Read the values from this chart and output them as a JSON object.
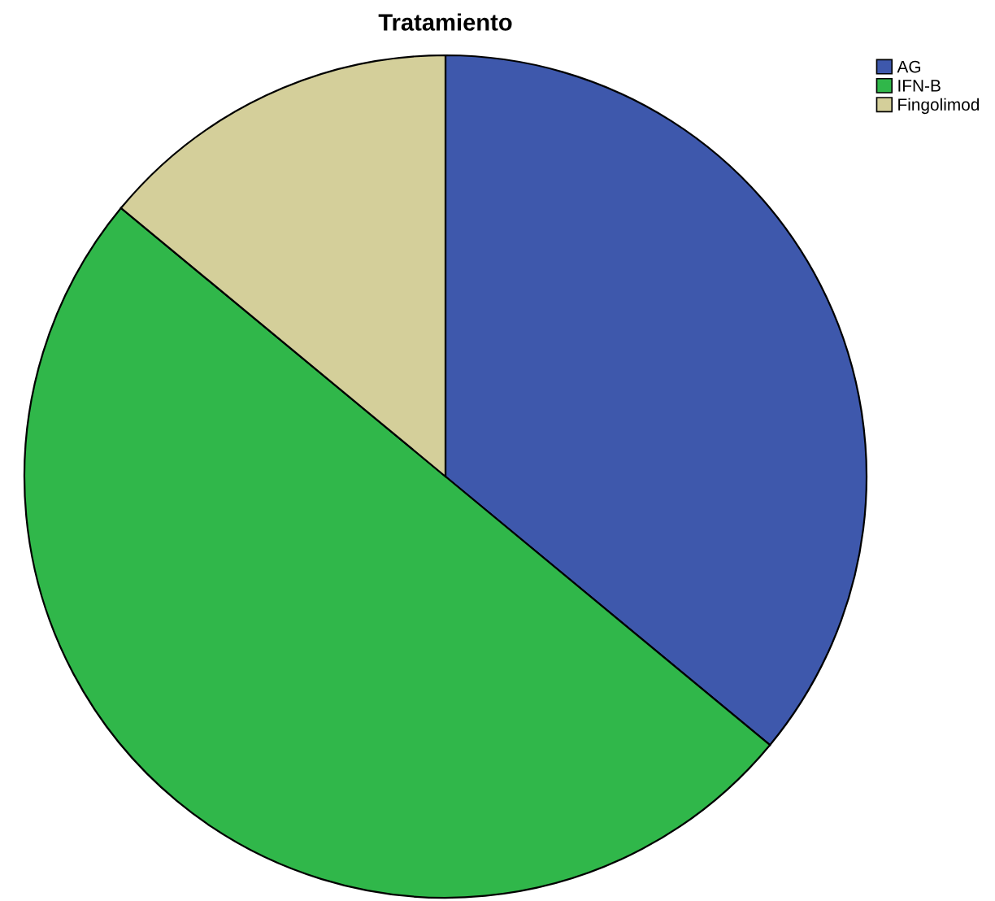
{
  "chart_data": {
    "type": "pie",
    "title": "Tratamiento",
    "categories": [
      "AG",
      "IFN-B",
      "Fingolimod"
    ],
    "values": [
      36,
      50,
      14
    ],
    "colors": [
      "#3e58ac",
      "#30b74a",
      "#d4cf9a"
    ],
    "legend": "top right"
  }
}
